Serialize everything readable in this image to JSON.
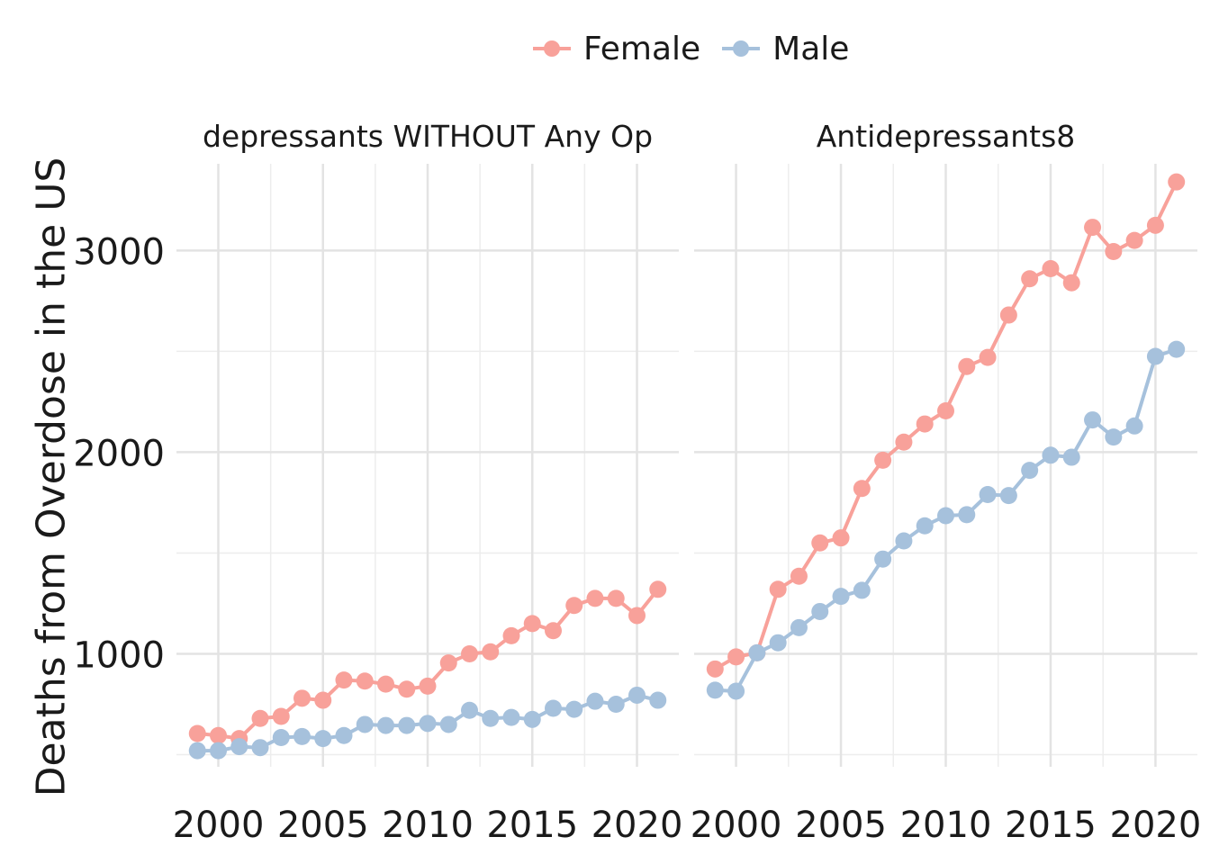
{
  "legend": {
    "female": {
      "label": "Female",
      "color": "#F8A19A"
    },
    "male": {
      "label": "Male",
      "color": "#A6C1DC"
    }
  },
  "y_axis_title": "Deaths from Overdose in the US",
  "chart_data": {
    "type": "line",
    "ylabel": "Deaths from Overdose in the US",
    "xlabel": "",
    "ylim": [
      440,
      3430
    ],
    "xlim": [
      1998,
      2022
    ],
    "y_ticks": [
      1000,
      2000,
      3000
    ],
    "x_ticks": [
      2000,
      2005,
      2010,
      2015,
      2020
    ],
    "x_tick_labels": [
      "2000",
      "2005",
      "2010",
      "2015",
      "2020"
    ],
    "grid": true,
    "legend_position": "top",
    "panels": [
      {
        "title": "depressants WITHOUT Any Op",
        "x": [
          1999,
          2000,
          2001,
          2002,
          2003,
          2004,
          2005,
          2006,
          2007,
          2008,
          2009,
          2010,
          2011,
          2012,
          2013,
          2014,
          2015,
          2016,
          2017,
          2018,
          2019,
          2020,
          2021
        ],
        "series": [
          {
            "name": "Female",
            "color": "#F8A19A",
            "values": [
              605,
              595,
              580,
              680,
              690,
              780,
              770,
              870,
              865,
              850,
              825,
              840,
              955,
              1000,
              1010,
              1090,
              1150,
              1115,
              1240,
              1275,
              1275,
              1190,
              1320
            ]
          },
          {
            "name": "Male",
            "color": "#A6C1DC",
            "values": [
              520,
              520,
              540,
              535,
              585,
              590,
              580,
              595,
              650,
              645,
              645,
              655,
              650,
              720,
              680,
              685,
              675,
              730,
              725,
              765,
              750,
              795,
              770
            ]
          }
        ]
      },
      {
        "title": "Antidepressants8",
        "x": [
          1999,
          2000,
          2001,
          2002,
          2003,
          2004,
          2005,
          2006,
          2007,
          2008,
          2009,
          2010,
          2011,
          2012,
          2013,
          2014,
          2015,
          2016,
          2017,
          2018,
          2019,
          2020,
          2021
        ],
        "series": [
          {
            "name": "Female",
            "color": "#F8A19A",
            "values": [
              925,
              985,
              1005,
              1320,
              1385,
              1550,
              1575,
              1820,
              1960,
              2050,
              2140,
              2205,
              2425,
              2470,
              2680,
              2860,
              2910,
              2840,
              3115,
              2995,
              3050,
              3125,
              3340
            ]
          },
          {
            "name": "Male",
            "color": "#A6C1DC",
            "values": [
              820,
              815,
              1005,
              1055,
              1130,
              1210,
              1285,
              1315,
              1470,
              1560,
              1635,
              1685,
              1690,
              1790,
              1785,
              1910,
              1985,
              1975,
              2160,
              2075,
              2130,
              2475,
              2510
            ]
          }
        ]
      }
    ]
  }
}
